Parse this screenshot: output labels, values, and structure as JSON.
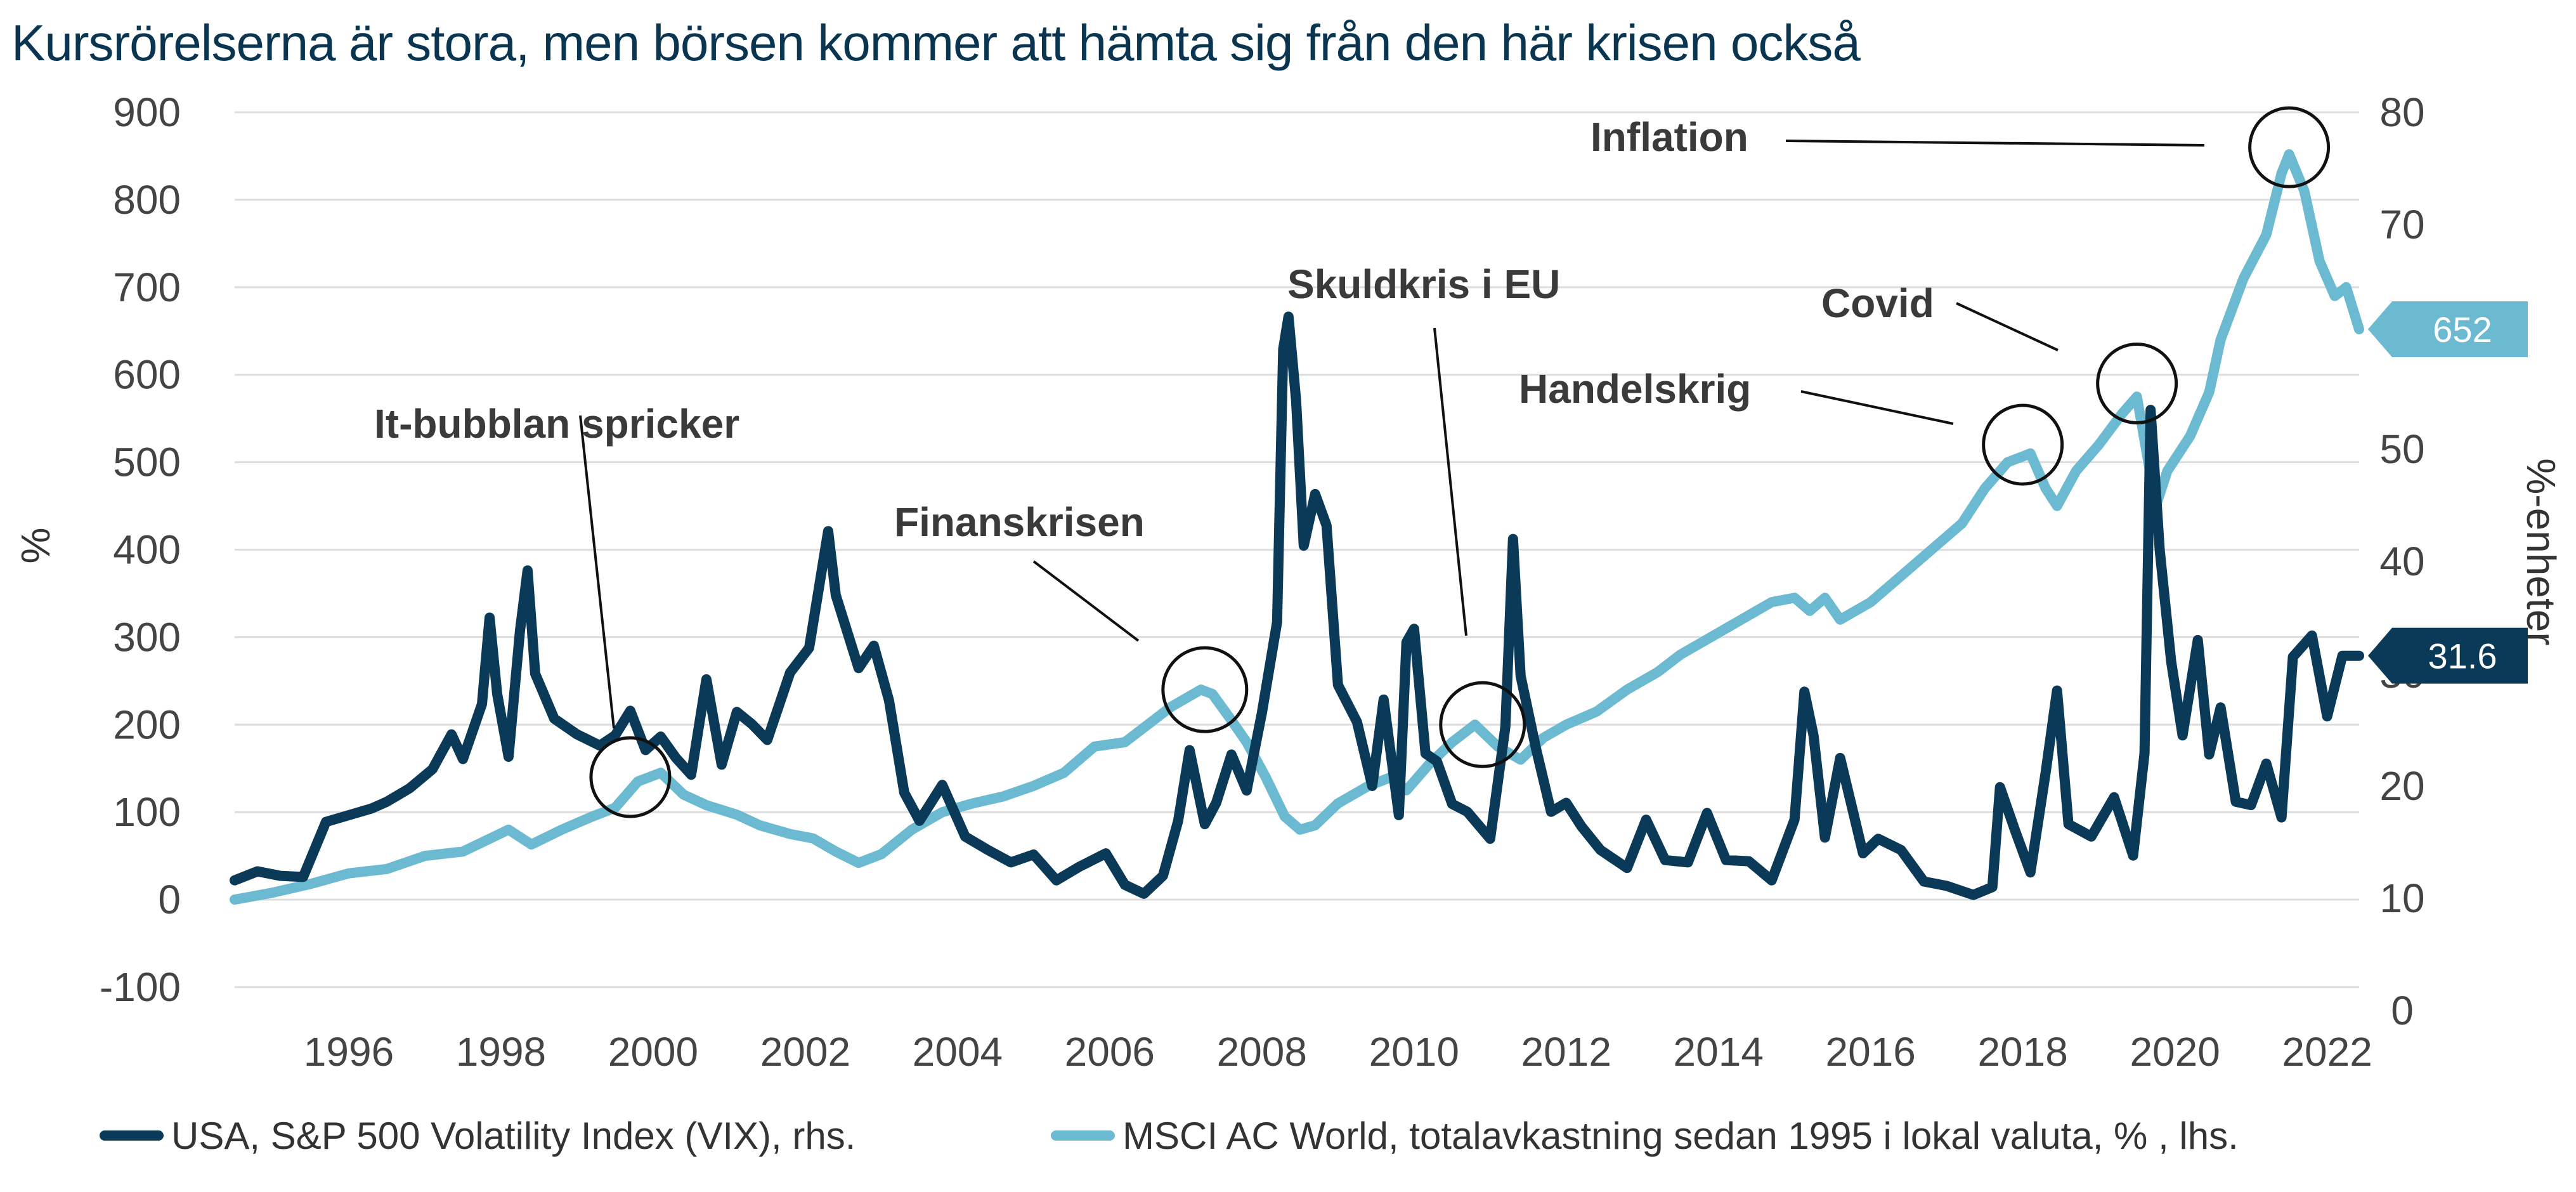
{
  "title": "Kursrörelserna är stora, men börsen kommer att hämta sig från den här krisen också",
  "colors": {
    "vix": "#0a3a57",
    "msci": "#6cbad1",
    "grid": "#dddddd"
  },
  "chart_data": {
    "type": "line",
    "title": "Kursrörelserna är stora, men börsen kommer att hämta sig från den här krisen också",
    "xlabel": "",
    "y_left": {
      "label": "%",
      "range": [
        -100,
        900
      ],
      "ticks": [
        -100,
        0,
        100,
        200,
        300,
        400,
        500,
        600,
        700,
        800,
        900
      ]
    },
    "y_right": {
      "label": "%-enheter",
      "range": [
        0,
        80
      ],
      "ticks": [
        0,
        10,
        20,
        30,
        40,
        50,
        60,
        70,
        80
      ]
    },
    "x_range": [
      1995,
      2022.92
    ],
    "x_ticks": [
      1996,
      1998,
      2000,
      2002,
      2004,
      2006,
      2008,
      2010,
      2012,
      2014,
      2016,
      2018,
      2020,
      2022
    ],
    "grid": true,
    "legend": "bottom",
    "series": [
      {
        "name": "USA, S&P 500 Volatility Index (VIX), rhs.",
        "axis": "right",
        "color": "#0a3a57",
        "end_label": "31.6",
        "points": [
          [
            1995.0,
            11.6
          ],
          [
            1995.3,
            12.4
          ],
          [
            1995.6,
            12.0
          ],
          [
            1995.9,
            11.9
          ],
          [
            1996.2,
            16.8
          ],
          [
            1996.5,
            17.4
          ],
          [
            1996.8,
            18.0
          ],
          [
            1997.0,
            18.6
          ],
          [
            1997.3,
            19.8
          ],
          [
            1997.6,
            21.5
          ],
          [
            1997.85,
            24.6
          ],
          [
            1998.0,
            22.4
          ],
          [
            1998.25,
            27.3
          ],
          [
            1998.35,
            35.0
          ],
          [
            1998.45,
            28.2
          ],
          [
            1998.6,
            22.6
          ],
          [
            1998.75,
            33.8
          ],
          [
            1998.85,
            39.2
          ],
          [
            1998.95,
            30.0
          ],
          [
            1999.2,
            26.0
          ],
          [
            1999.5,
            24.6
          ],
          [
            1999.8,
            23.6
          ],
          [
            2000.0,
            24.5
          ],
          [
            2000.2,
            26.7
          ],
          [
            2000.4,
            23.2
          ],
          [
            2000.6,
            24.4
          ],
          [
            2000.8,
            22.5
          ],
          [
            2001.0,
            21.0
          ],
          [
            2001.2,
            29.5
          ],
          [
            2001.4,
            21.9
          ],
          [
            2001.6,
            26.6
          ],
          [
            2001.8,
            25.5
          ],
          [
            2002.0,
            24.1
          ],
          [
            2002.3,
            30.1
          ],
          [
            2002.55,
            32.3
          ],
          [
            2002.8,
            42.7
          ],
          [
            2002.9,
            37.0
          ],
          [
            2003.2,
            30.5
          ],
          [
            2003.4,
            32.5
          ],
          [
            2003.6,
            27.6
          ],
          [
            2003.8,
            19.4
          ],
          [
            2004.0,
            16.9
          ],
          [
            2004.3,
            20.1
          ],
          [
            2004.6,
            15.5
          ],
          [
            2004.9,
            14.3
          ],
          [
            2005.2,
            13.2
          ],
          [
            2005.5,
            13.9
          ],
          [
            2005.8,
            11.6
          ],
          [
            2006.1,
            12.8
          ],
          [
            2006.45,
            14.0
          ],
          [
            2006.7,
            11.2
          ],
          [
            2006.95,
            10.4
          ],
          [
            2007.2,
            12.0
          ],
          [
            2007.4,
            16.9
          ],
          [
            2007.55,
            23.2
          ],
          [
            2007.75,
            16.6
          ],
          [
            2007.9,
            18.5
          ],
          [
            2008.1,
            22.8
          ],
          [
            2008.3,
            19.6
          ],
          [
            2008.5,
            26.5
          ],
          [
            2008.7,
            34.6
          ],
          [
            2008.78,
            58.9
          ],
          [
            2008.85,
            61.8
          ],
          [
            2008.95,
            54.3
          ],
          [
            2009.05,
            41.4
          ],
          [
            2009.2,
            46.0
          ],
          [
            2009.35,
            43.2
          ],
          [
            2009.5,
            29.0
          ],
          [
            2009.75,
            25.7
          ],
          [
            2009.95,
            20.0
          ],
          [
            2010.1,
            27.7
          ],
          [
            2010.3,
            17.4
          ],
          [
            2010.4,
            32.8
          ],
          [
            2010.5,
            34.0
          ],
          [
            2010.65,
            22.9
          ],
          [
            2010.8,
            22.2
          ],
          [
            2011.0,
            18.4
          ],
          [
            2011.2,
            17.7
          ],
          [
            2011.5,
            15.3
          ],
          [
            2011.7,
            25.3
          ],
          [
            2011.8,
            42.0
          ],
          [
            2011.9,
            29.8
          ],
          [
            2012.1,
            23.4
          ],
          [
            2012.3,
            17.7
          ],
          [
            2012.5,
            18.5
          ],
          [
            2012.7,
            16.4
          ],
          [
            2012.95,
            14.3
          ],
          [
            2013.3,
            12.7
          ],
          [
            2013.55,
            17.0
          ],
          [
            2013.8,
            13.4
          ],
          [
            2014.1,
            13.2
          ],
          [
            2014.35,
            17.6
          ],
          [
            2014.6,
            13.4
          ],
          [
            2014.9,
            13.3
          ],
          [
            2015.2,
            11.6
          ],
          [
            2015.5,
            17.0
          ],
          [
            2015.63,
            28.4
          ],
          [
            2015.75,
            24.5
          ],
          [
            2015.9,
            15.4
          ],
          [
            2016.1,
            22.5
          ],
          [
            2016.4,
            14.0
          ],
          [
            2016.6,
            15.3
          ],
          [
            2016.9,
            14.3
          ],
          [
            2017.2,
            11.5
          ],
          [
            2017.5,
            11.1
          ],
          [
            2017.85,
            10.3
          ],
          [
            2018.1,
            11.0
          ],
          [
            2018.2,
            19.9
          ],
          [
            2018.4,
            16.0
          ],
          [
            2018.6,
            12.3
          ],
          [
            2018.8,
            21.2
          ],
          [
            2018.95,
            28.5
          ],
          [
            2019.1,
            16.6
          ],
          [
            2019.4,
            15.5
          ],
          [
            2019.7,
            19.0
          ],
          [
            2019.95,
            13.8
          ],
          [
            2020.1,
            22.9
          ],
          [
            2020.18,
            53.5
          ],
          [
            2020.3,
            41.0
          ],
          [
            2020.45,
            31.1
          ],
          [
            2020.6,
            24.5
          ],
          [
            2020.8,
            33.0
          ],
          [
            2020.95,
            22.8
          ],
          [
            2021.1,
            27.0
          ],
          [
            2021.3,
            18.6
          ],
          [
            2021.5,
            18.3
          ],
          [
            2021.7,
            22.0
          ],
          [
            2021.9,
            17.2
          ],
          [
            2022.05,
            31.5
          ],
          [
            2022.3,
            33.4
          ],
          [
            2022.5,
            26.2
          ],
          [
            2022.7,
            31.6
          ],
          [
            2022.92,
            31.6
          ]
        ]
      },
      {
        "name": "MSCI AC World, totalavkastning sedan 1995 i lokal valuta, % , lhs.",
        "axis": "left",
        "color": "#6cbad1",
        "end_label": "652",
        "points": [
          [
            1995.0,
            0
          ],
          [
            1995.5,
            8
          ],
          [
            1996.0,
            18
          ],
          [
            1996.5,
            30
          ],
          [
            1997.0,
            35
          ],
          [
            1997.5,
            50
          ],
          [
            1998.0,
            55
          ],
          [
            1998.6,
            80
          ],
          [
            1998.9,
            63
          ],
          [
            1999.3,
            80
          ],
          [
            1999.7,
            95
          ],
          [
            2000.0,
            105
          ],
          [
            2000.3,
            135
          ],
          [
            2000.6,
            145
          ],
          [
            2000.9,
            120
          ],
          [
            2001.2,
            108
          ],
          [
            2001.6,
            97
          ],
          [
            2001.9,
            85
          ],
          [
            2002.3,
            75
          ],
          [
            2002.6,
            70
          ],
          [
            2002.9,
            55
          ],
          [
            2003.2,
            42
          ],
          [
            2003.5,
            52
          ],
          [
            2003.9,
            80
          ],
          [
            2004.3,
            100
          ],
          [
            2004.7,
            110
          ],
          [
            2005.1,
            118
          ],
          [
            2005.5,
            130
          ],
          [
            2005.9,
            145
          ],
          [
            2006.3,
            175
          ],
          [
            2006.7,
            180
          ],
          [
            2007.0,
            200
          ],
          [
            2007.3,
            220
          ],
          [
            2007.7,
            240
          ],
          [
            2007.85,
            235
          ],
          [
            2008.1,
            205
          ],
          [
            2008.3,
            180
          ],
          [
            2008.55,
            140
          ],
          [
            2008.8,
            95
          ],
          [
            2009.0,
            80
          ],
          [
            2009.2,
            85
          ],
          [
            2009.5,
            110
          ],
          [
            2009.9,
            130
          ],
          [
            2010.2,
            140
          ],
          [
            2010.4,
            125
          ],
          [
            2010.7,
            155
          ],
          [
            2011.0,
            180
          ],
          [
            2011.3,
            200
          ],
          [
            2011.6,
            175
          ],
          [
            2011.9,
            160
          ],
          [
            2012.2,
            185
          ],
          [
            2012.5,
            200
          ],
          [
            2012.9,
            215
          ],
          [
            2013.3,
            240
          ],
          [
            2013.7,
            260
          ],
          [
            2014.0,
            280
          ],
          [
            2014.4,
            300
          ],
          [
            2014.8,
            320
          ],
          [
            2015.2,
            340
          ],
          [
            2015.5,
            345
          ],
          [
            2015.7,
            330
          ],
          [
            2015.9,
            345
          ],
          [
            2016.1,
            320
          ],
          [
            2016.5,
            340
          ],
          [
            2016.9,
            370
          ],
          [
            2017.3,
            400
          ],
          [
            2017.7,
            430
          ],
          [
            2018.0,
            470
          ],
          [
            2018.3,
            500
          ],
          [
            2018.6,
            510
          ],
          [
            2018.8,
            470
          ],
          [
            2018.95,
            450
          ],
          [
            2019.2,
            490
          ],
          [
            2019.5,
            520
          ],
          [
            2019.8,
            555
          ],
          [
            2020.0,
            575
          ],
          [
            2020.15,
            500
          ],
          [
            2020.25,
            450
          ],
          [
            2020.4,
            490
          ],
          [
            2020.7,
            530
          ],
          [
            2020.95,
            580
          ],
          [
            2021.1,
            640
          ],
          [
            2021.4,
            710
          ],
          [
            2021.7,
            760
          ],
          [
            2021.9,
            830
          ],
          [
            2022.0,
            852
          ],
          [
            2022.2,
            810
          ],
          [
            2022.4,
            730
          ],
          [
            2022.6,
            690
          ],
          [
            2022.75,
            700
          ],
          [
            2022.92,
            652
          ]
        ]
      }
    ],
    "annotations": [
      {
        "text": "It-bubblan spricker",
        "x": 2000.2,
        "y": 140
      },
      {
        "text": "Finanskrisen",
        "x": 2007.75,
        "y": 240
      },
      {
        "text": "Skuldkris i EU",
        "x": 2011.4,
        "y": 200
      },
      {
        "text": "Handelskrig",
        "x": 2018.5,
        "y": 520
      },
      {
        "text": "Covid",
        "x": 2020.0,
        "y": 590
      },
      {
        "text": "Inflation",
        "x": 2022.0,
        "y": 860
      }
    ]
  }
}
